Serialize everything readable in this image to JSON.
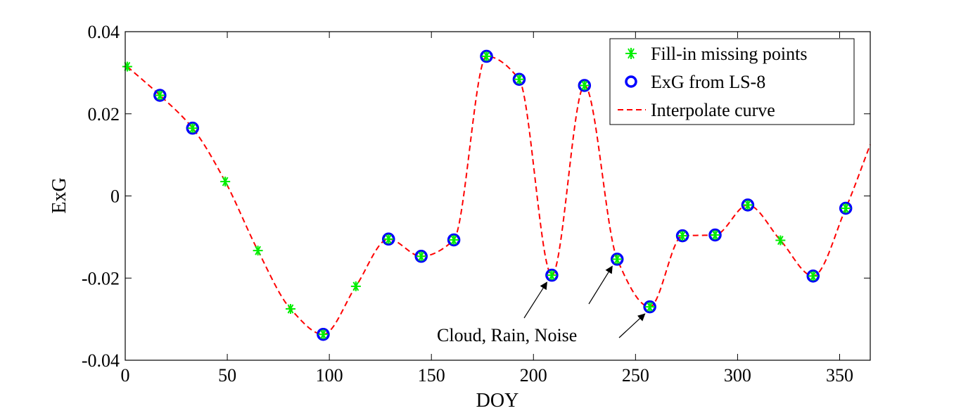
{
  "chart_data": {
    "type": "line",
    "xlabel": "DOY",
    "ylabel": "ExG",
    "xlim": [
      0,
      365
    ],
    "ylim": [
      -0.04,
      0.04
    ],
    "xticks": [
      0,
      50,
      100,
      150,
      200,
      250,
      300,
      350
    ],
    "yticks": [
      -0.04,
      -0.02,
      0,
      0.02,
      0.04
    ],
    "xtick_labels": [
      "0",
      "50",
      "100",
      "150",
      "200",
      "250",
      "300",
      "350"
    ],
    "ytick_labels": [
      "-0.04",
      "-0.02",
      "0",
      "0.02",
      "0.04"
    ],
    "grid": false,
    "legend_position": "top-right",
    "series": [
      {
        "name": "Fill-in missing points",
        "marker": "asterisk",
        "color": "#00ee00",
        "x": [
          1,
          17,
          33,
          49,
          65,
          81,
          97,
          113,
          129,
          145,
          161,
          177,
          193,
          209,
          225,
          241,
          257,
          273,
          289,
          305,
          321,
          337,
          353
        ],
        "y": [
          0.0315,
          0.0245,
          0.0165,
          0.0035,
          -0.0133,
          -0.0275,
          -0.0337,
          -0.022,
          -0.0105,
          -0.0147,
          -0.0107,
          0.034,
          0.0284,
          -0.0193,
          0.0269,
          -0.0154,
          -0.027,
          -0.0097,
          -0.0095,
          -0.0022,
          -0.0108,
          -0.0195,
          -0.003
        ]
      },
      {
        "name": "ExG from LS-8",
        "marker": "circle",
        "color": "#0000ff",
        "x": [
          17,
          33,
          97,
          129,
          145,
          161,
          177,
          193,
          209,
          225,
          241,
          257,
          273,
          289,
          305,
          337,
          353
        ],
        "y": [
          0.0245,
          0.0165,
          -0.0337,
          -0.0105,
          -0.0147,
          -0.0107,
          0.034,
          0.0284,
          -0.0193,
          0.0269,
          -0.0154,
          -0.027,
          -0.0097,
          -0.0095,
          -0.0022,
          -0.0195,
          -0.003
        ]
      },
      {
        "name": "Interpolate curve",
        "style": "dashed",
        "color": "#ff0000",
        "x": [
          1,
          17,
          33,
          49,
          65,
          81,
          97,
          113,
          129,
          145,
          161,
          177,
          193,
          209,
          225,
          241,
          257,
          273,
          289,
          305,
          321,
          337,
          353,
          365
        ],
        "y": [
          0.0315,
          0.0245,
          0.0165,
          0.0035,
          -0.0133,
          -0.0275,
          -0.0337,
          -0.022,
          -0.0105,
          -0.0147,
          -0.0107,
          0.034,
          0.0284,
          -0.0193,
          0.0269,
          -0.0154,
          -0.027,
          -0.0097,
          -0.0095,
          -0.0022,
          -0.0108,
          -0.0195,
          -0.003,
          0.0125
        ]
      }
    ],
    "annotation": {
      "text": "Cloud, Rain, Noise",
      "arrow_targets": [
        {
          "x": 209,
          "y": -0.0193
        },
        {
          "x": 241,
          "y": -0.0154
        },
        {
          "x": 257,
          "y": -0.027
        }
      ]
    }
  }
}
